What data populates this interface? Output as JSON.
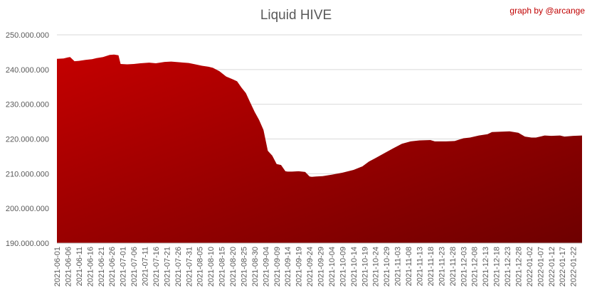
{
  "credit": "graph by @arcange",
  "chart_data": {
    "type": "area",
    "title": "Liquid HIVE",
    "xlabel": "",
    "ylabel": "",
    "ylim": [
      190000000,
      250000000
    ],
    "yticks": [
      190000000,
      200000000,
      210000000,
      220000000,
      230000000,
      240000000,
      250000000
    ],
    "ytick_labels": [
      "190.000.000",
      "200.000.000",
      "210.000.000",
      "220.000.000",
      "230.000.000",
      "240.000.000",
      "250.000.000"
    ],
    "grid": true,
    "legend": "none",
    "fill_colors": [
      "#c40000",
      "#6e0000"
    ],
    "x_start": "2021-06-01",
    "x_end": "2022-01-26",
    "xticks": [
      "2021-06-01",
      "2021-06-06",
      "2021-06-11",
      "2021-06-16",
      "2021-06-21",
      "2021-06-26",
      "2021-07-01",
      "2021-07-06",
      "2021-07-11",
      "2021-07-16",
      "2021-07-21",
      "2021-07-26",
      "2021-07-31",
      "2021-08-05",
      "2021-08-10",
      "2021-08-15",
      "2021-08-20",
      "2021-08-25",
      "2021-08-30",
      "2021-09-04",
      "2021-09-09",
      "2021-09-14",
      "2021-09-19",
      "2021-09-24",
      "2021-09-29",
      "2021-10-04",
      "2021-10-09",
      "2021-10-14",
      "2021-10-19",
      "2021-10-24",
      "2021-10-29",
      "2021-11-03",
      "2021-11-08",
      "2021-11-13",
      "2021-11-18",
      "2021-11-23",
      "2021-11-28",
      "2021-12-03",
      "2021-12-08",
      "2021-12-13",
      "2021-12-18",
      "2021-12-23",
      "2021-12-28",
      "2022-01-02",
      "2022-01-07",
      "2022-01-12",
      "2022-01-17",
      "2022-01-22"
    ],
    "series": [
      {
        "x": [
          "2021-06-01",
          "2021-06-04",
          "2021-06-06",
          "2021-06-07",
          "2021-06-09",
          "2021-06-11",
          "2021-06-14",
          "2021-06-17",
          "2021-06-19",
          "2021-06-22",
          "2021-06-25",
          "2021-06-27",
          "2021-06-29",
          "2021-06-30",
          "2021-07-03",
          "2021-07-06",
          "2021-07-09",
          "2021-07-13",
          "2021-07-16",
          "2021-07-20",
          "2021-07-23",
          "2021-07-27",
          "2021-07-31",
          "2021-08-03",
          "2021-08-06",
          "2021-08-09",
          "2021-08-11",
          "2021-08-14",
          "2021-08-17",
          "2021-08-20",
          "2021-08-22",
          "2021-08-24",
          "2021-08-26",
          "2021-08-28",
          "2021-08-30",
          "2021-09-01",
          "2021-09-03",
          "2021-09-05",
          "2021-09-07",
          "2021-09-09",
          "2021-09-11",
          "2021-09-13",
          "2021-09-14",
          "2021-09-16",
          "2021-09-19",
          "2021-09-22",
          "2021-09-24",
          "2021-09-25",
          "2021-09-27",
          "2021-09-30",
          "2021-10-04",
          "2021-10-09",
          "2021-10-14",
          "2021-10-18",
          "2021-10-21",
          "2021-10-24",
          "2021-10-28",
          "2021-11-01",
          "2021-11-05",
          "2021-11-09",
          "2021-11-13",
          "2021-11-18",
          "2021-11-20",
          "2021-11-25",
          "2021-11-29",
          "2021-12-03",
          "2021-12-06",
          "2021-12-10",
          "2021-12-14",
          "2021-12-16",
          "2021-12-20",
          "2021-12-24",
          "2021-12-28",
          "2021-12-31",
          "2022-01-03",
          "2022-01-05",
          "2022-01-09",
          "2022-01-12",
          "2022-01-16",
          "2022-01-18",
          "2022-01-22",
          "2022-01-26"
        ],
        "values": [
          243100000,
          243200000,
          243500000,
          243600000,
          242400000,
          242500000,
          242800000,
          243000000,
          243300000,
          243600000,
          244200000,
          244300000,
          244100000,
          241600000,
          241500000,
          241600000,
          241800000,
          242000000,
          241800000,
          242200000,
          242300000,
          242100000,
          241900000,
          241500000,
          241100000,
          240800000,
          240500000,
          239500000,
          238000000,
          237200000,
          236600000,
          234800000,
          233200000,
          230500000,
          227800000,
          225500000,
          222600000,
          216600000,
          215200000,
          212800000,
          212500000,
          210700000,
          210600000,
          210600000,
          210700000,
          210500000,
          209200000,
          209100000,
          209200000,
          209300000,
          209700000,
          210300000,
          211100000,
          212100000,
          213500000,
          214500000,
          215900000,
          217300000,
          218600000,
          219300000,
          219600000,
          219700000,
          219300000,
          219300000,
          219400000,
          220200000,
          220400000,
          221000000,
          221400000,
          222000000,
          222100000,
          222200000,
          221800000,
          220700000,
          220400000,
          220400000,
          221000000,
          220900000,
          221000000,
          220700000,
          220900000,
          221000000
        ]
      }
    ]
  }
}
